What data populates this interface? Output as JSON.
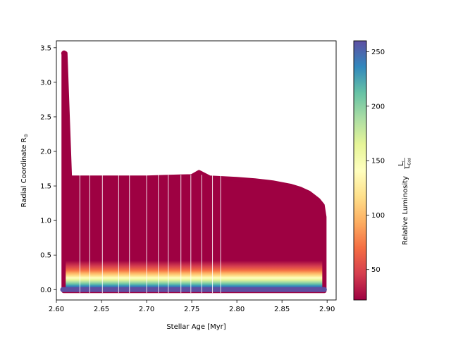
{
  "chart_data": {
    "type": "scatter",
    "xlabel": "Stellar Age [Myr]",
    "ylabel": "Radial Coordinate R",
    "ylabel_sub": "⊙",
    "xlim": [
      2.6,
      2.91
    ],
    "ylim": [
      -0.15,
      3.6
    ],
    "x_ticks": [
      "2.60",
      "2.65",
      "2.70",
      "2.75",
      "2.80",
      "2.85",
      "2.90"
    ],
    "y_ticks": [
      "0.0",
      "0.5",
      "1.0",
      "1.5",
      "2.0",
      "2.5",
      "3.0",
      "3.5"
    ],
    "colorbar": {
      "label": "Relative Luminosity",
      "label_math": {
        "num": "L",
        "num_sub": "r",
        "den": "L",
        "den_sub": "Edd"
      },
      "range": [
        22,
        260
      ],
      "ticks": [
        "50",
        "100",
        "150",
        "200",
        "250"
      ],
      "colormap": "Spectral"
    },
    "outer_radius_profile": {
      "x": [
        2.608,
        2.61,
        2.615,
        2.62,
        2.65,
        2.7,
        2.72,
        2.75,
        2.758,
        2.77,
        2.8,
        2.82,
        2.84,
        2.86,
        2.87,
        2.88,
        2.885,
        2.89,
        2.895,
        2.897
      ],
      "y": [
        3.42,
        3.42,
        1.62,
        1.62,
        1.62,
        1.62,
        1.63,
        1.64,
        1.7,
        1.62,
        1.6,
        1.58,
        1.55,
        1.5,
        1.46,
        1.4,
        1.35,
        1.3,
        1.22,
        1.05
      ]
    },
    "column_gap_ages": [
      2.626,
      2.637,
      2.651,
      2.669,
      2.681,
      2.7,
      2.713,
      2.724,
      2.738,
      2.749,
      2.761,
      2.773,
      2.782
    ]
  }
}
